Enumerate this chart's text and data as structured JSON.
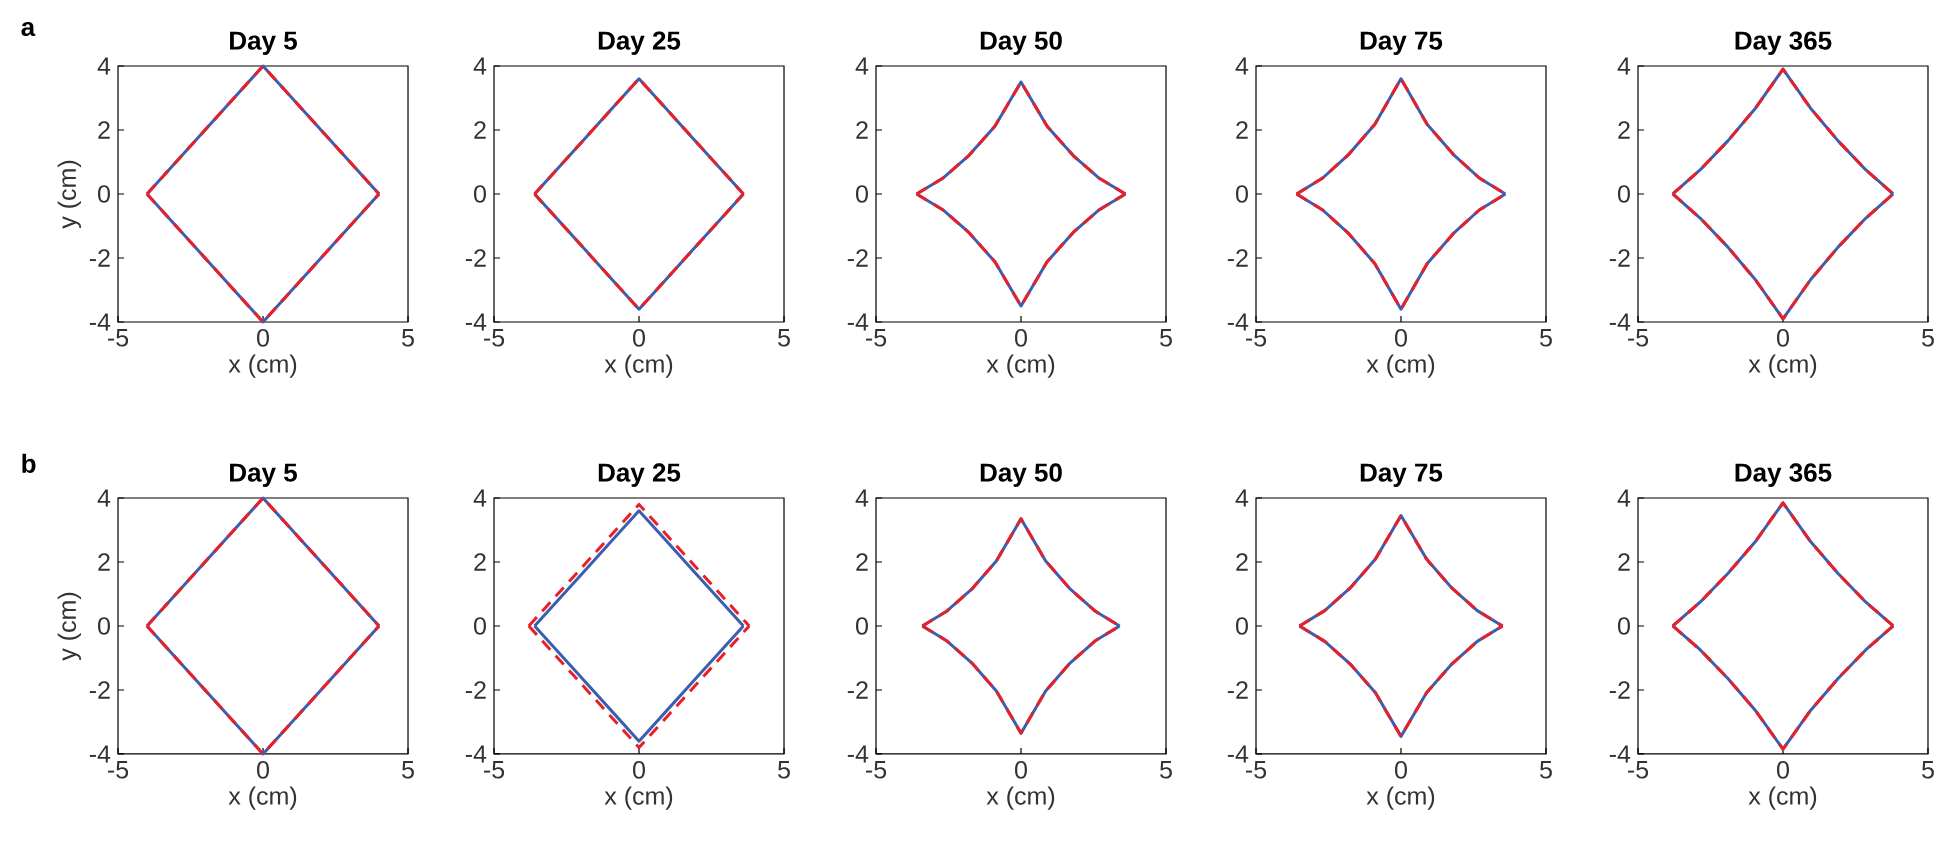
{
  "chart_data": [
    {
      "type": "line",
      "title": "Day 5",
      "xlabel": "x (cm)",
      "ylabel": "y (cm)",
      "annotations": [
        "a"
      ],
      "xlim": [
        -5,
        5
      ],
      "ylim": [
        -4,
        4
      ],
      "xticks": [
        -5,
        0,
        5
      ],
      "yticks": [
        -4,
        -2,
        0,
        2,
        4
      ],
      "series": [
        {
          "color": "#3a5fb0",
          "line_style": "solid",
          "x": [
            -4,
            -3,
            -2,
            -1,
            0,
            1,
            2,
            3,
            4
          ],
          "values": [
            0,
            1,
            2,
            3,
            4,
            3,
            2,
            1,
            0
          ]
        },
        {
          "color": "#3a5fb0",
          "line_style": "solid",
          "x": [
            -4,
            -3,
            -2,
            -1,
            0,
            1,
            2,
            3,
            4
          ],
          "values": [
            0,
            -1,
            -2,
            -3,
            -4,
            -3,
            -2,
            -1,
            0
          ]
        },
        {
          "color": "#e8202a",
          "line_style": "dashed",
          "x": [
            -4,
            -3,
            -2,
            -1,
            0,
            1,
            2,
            3,
            4
          ],
          "values": [
            0,
            1,
            2,
            3,
            4,
            3,
            2,
            1,
            0
          ]
        },
        {
          "color": "#e8202a",
          "line_style": "dashed",
          "x": [
            -4,
            -3,
            -2,
            -1,
            0,
            1,
            2,
            3,
            4
          ],
          "values": [
            0,
            -1,
            -2,
            -3,
            -4,
            -3,
            -2,
            -1,
            0
          ]
        }
      ]
    },
    {
      "type": "line",
      "title": "Day 25",
      "xlabel": "x (cm)",
      "xlim": [
        -5,
        5
      ],
      "ylim": [
        -4,
        4
      ],
      "xticks": [
        -5,
        0,
        5
      ],
      "yticks": [
        -4,
        -2,
        0,
        2,
        4
      ],
      "series": [
        {
          "color": "#3a5fb0",
          "line_style": "solid",
          "x": [
            -3.6,
            -2.7,
            -1.8,
            -0.9,
            0,
            0.9,
            1.8,
            2.7,
            3.6
          ],
          "values": [
            0,
            0.9,
            1.8,
            2.7,
            3.6,
            2.7,
            1.8,
            0.9,
            0
          ]
        },
        {
          "color": "#3a5fb0",
          "line_style": "solid",
          "x": [
            -3.6,
            -2.7,
            -1.8,
            -0.9,
            0,
            0.9,
            1.8,
            2.7,
            3.6
          ],
          "values": [
            0,
            -0.9,
            -1.8,
            -2.7,
            -3.6,
            -2.7,
            -1.8,
            -0.9,
            0
          ]
        },
        {
          "color": "#e8202a",
          "line_style": "dashed",
          "x": [
            -3.6,
            -2.7,
            -1.8,
            -0.9,
            0,
            0.9,
            1.8,
            2.7,
            3.6
          ],
          "values": [
            0,
            0.9,
            1.8,
            2.7,
            3.6,
            2.7,
            1.8,
            0.9,
            0
          ]
        },
        {
          "color": "#e8202a",
          "line_style": "dashed",
          "x": [
            -3.6,
            -2.7,
            -1.8,
            -0.9,
            0,
            0.9,
            1.8,
            2.7,
            3.6
          ],
          "values": [
            0,
            -0.9,
            -1.8,
            -2.7,
            -3.6,
            -2.7,
            -1.8,
            -0.9,
            0
          ]
        }
      ]
    },
    {
      "type": "line",
      "title": "Day 50",
      "xlabel": "x (cm)",
      "xlim": [
        -5,
        5
      ],
      "ylim": [
        -4,
        4
      ],
      "xticks": [
        -5,
        0,
        5
      ],
      "yticks": [
        -4,
        -2,
        0,
        2,
        4
      ],
      "series": [
        {
          "color": "#3a5fb0",
          "line_style": "solid",
          "x": [
            -3.6,
            -2.7,
            -1.8,
            -0.9,
            0,
            0.9,
            1.8,
            2.7,
            3.6
          ],
          "values": [
            0,
            0.49,
            1.2,
            2.12,
            3.5,
            2.12,
            1.2,
            0.49,
            0
          ]
        },
        {
          "color": "#3a5fb0",
          "line_style": "solid",
          "x": [
            -3.6,
            -2.7,
            -1.8,
            -0.9,
            0,
            0.9,
            1.8,
            2.7,
            3.6
          ],
          "values": [
            0,
            -0.49,
            -1.2,
            -2.12,
            -3.5,
            -2.12,
            -1.2,
            -0.49,
            0
          ]
        },
        {
          "color": "#e8202a",
          "line_style": "dashed",
          "x": [
            -3.6,
            -2.7,
            -1.8,
            -0.9,
            0,
            0.9,
            1.8,
            2.7,
            3.6
          ],
          "values": [
            0,
            0.49,
            1.2,
            2.12,
            3.5,
            2.12,
            1.2,
            0.49,
            0
          ]
        },
        {
          "color": "#e8202a",
          "line_style": "dashed",
          "x": [
            -3.6,
            -2.7,
            -1.8,
            -0.9,
            0,
            0.9,
            1.8,
            2.7,
            3.6
          ],
          "values": [
            0,
            -0.49,
            -1.2,
            -2.12,
            -3.5,
            -2.12,
            -1.2,
            -0.49,
            0
          ]
        }
      ]
    },
    {
      "type": "line",
      "title": "Day 75",
      "xlabel": "x (cm)",
      "xlim": [
        -5,
        5
      ],
      "ylim": [
        -4,
        4
      ],
      "xticks": [
        -5,
        0,
        5
      ],
      "yticks": [
        -4,
        -2,
        0,
        2,
        4
      ],
      "series": [
        {
          "color": "#3a5fb0",
          "line_style": "solid",
          "x": [
            -3.6,
            -2.7,
            -1.8,
            -0.9,
            0,
            0.9,
            1.8,
            2.7,
            3.6
          ],
          "values": [
            0,
            0.5,
            1.24,
            2.18,
            3.6,
            2.18,
            1.24,
            0.5,
            0
          ]
        },
        {
          "color": "#3a5fb0",
          "line_style": "solid",
          "x": [
            -3.6,
            -2.7,
            -1.8,
            -0.9,
            0,
            0.9,
            1.8,
            2.7,
            3.6
          ],
          "values": [
            0,
            -0.5,
            -1.24,
            -2.18,
            -3.6,
            -2.18,
            -1.24,
            -0.5,
            0
          ]
        },
        {
          "color": "#e8202a",
          "line_style": "dashed",
          "x": [
            -3.6,
            -2.7,
            -1.8,
            -0.9,
            0,
            0.9,
            1.8,
            2.7,
            3.6
          ],
          "values": [
            0,
            0.5,
            1.24,
            2.18,
            3.6,
            2.18,
            1.24,
            0.5,
            0
          ]
        },
        {
          "color": "#e8202a",
          "line_style": "dashed",
          "x": [
            -3.6,
            -2.7,
            -1.8,
            -0.9,
            0,
            0.9,
            1.8,
            2.7,
            3.6
          ],
          "values": [
            0,
            -0.5,
            -1.24,
            -2.18,
            -3.6,
            -2.18,
            -1.24,
            -0.5,
            0
          ]
        }
      ]
    },
    {
      "type": "line",
      "title": "Day 365",
      "xlabel": "x (cm)",
      "xlim": [
        -5,
        5
      ],
      "ylim": [
        -4,
        4
      ],
      "xticks": [
        -5,
        0,
        5
      ],
      "yticks": [
        -4,
        -2,
        0,
        2,
        4
      ],
      "series": [
        {
          "color": "#3a5fb0",
          "line_style": "solid",
          "x": [
            -3.8,
            -2.85,
            -1.9,
            -0.95,
            0,
            0.95,
            1.9,
            2.85,
            3.8
          ],
          "values": [
            0,
            0.76,
            1.66,
            2.68,
            3.9,
            2.68,
            1.66,
            0.76,
            0
          ]
        },
        {
          "color": "#3a5fb0",
          "line_style": "solid",
          "x": [
            -3.8,
            -2.85,
            -1.9,
            -0.95,
            0,
            0.95,
            1.9,
            2.85,
            3.8
          ],
          "values": [
            0,
            -0.76,
            -1.66,
            -2.68,
            -3.9,
            -2.68,
            -1.66,
            -0.76,
            0
          ]
        },
        {
          "color": "#e8202a",
          "line_style": "dashed",
          "x": [
            -3.8,
            -2.85,
            -1.9,
            -0.95,
            0,
            0.95,
            1.9,
            2.85,
            3.8
          ],
          "values": [
            0,
            0.76,
            1.66,
            2.68,
            3.9,
            2.68,
            1.66,
            0.76,
            0
          ]
        },
        {
          "color": "#e8202a",
          "line_style": "dashed",
          "x": [
            -3.8,
            -2.85,
            -1.9,
            -0.95,
            0,
            0.95,
            1.9,
            2.85,
            3.8
          ],
          "values": [
            0,
            -0.76,
            -1.66,
            -2.68,
            -3.9,
            -2.68,
            -1.66,
            -0.76,
            0
          ]
        }
      ]
    },
    {
      "type": "line",
      "title": "Day 5",
      "xlabel": "x (cm)",
      "ylabel": "y (cm)",
      "annotations": [
        "b"
      ],
      "xlim": [
        -5,
        5
      ],
      "ylim": [
        -4,
        4
      ],
      "xticks": [
        -5,
        0,
        5
      ],
      "yticks": [
        -4,
        -2,
        0,
        2,
        4
      ],
      "series": [
        {
          "color": "#3a5fb0",
          "line_style": "solid",
          "x": [
            -4,
            -3,
            -2,
            -1,
            0,
            1,
            2,
            3,
            4
          ],
          "values": [
            0,
            1,
            2,
            3,
            4,
            3,
            2,
            1,
            0
          ]
        },
        {
          "color": "#3a5fb0",
          "line_style": "solid",
          "x": [
            -4,
            -3,
            -2,
            -1,
            0,
            1,
            2,
            3,
            4
          ],
          "values": [
            0,
            -1,
            -2,
            -3,
            -4,
            -3,
            -2,
            -1,
            0
          ]
        },
        {
          "color": "#e8202a",
          "line_style": "dashed",
          "x": [
            -4,
            -3,
            -2,
            -1,
            0,
            1,
            2,
            3,
            4
          ],
          "values": [
            0,
            1,
            2,
            3,
            4,
            3,
            2,
            1,
            0
          ]
        },
        {
          "color": "#e8202a",
          "line_style": "dashed",
          "x": [
            -4,
            -3,
            -2,
            -1,
            0,
            1,
            2,
            3,
            4
          ],
          "values": [
            0,
            -1,
            -2,
            -3,
            -4,
            -3,
            -2,
            -1,
            0
          ]
        }
      ]
    },
    {
      "type": "line",
      "title": "Day 25",
      "xlabel": "x (cm)",
      "xlim": [
        -5,
        5
      ],
      "ylim": [
        -4,
        4
      ],
      "xticks": [
        -5,
        0,
        5
      ],
      "yticks": [
        -4,
        -2,
        0,
        2,
        4
      ],
      "series": [
        {
          "color": "#3a5fb0",
          "line_style": "solid",
          "x": [
            -3.6,
            -2.7,
            -1.8,
            -0.9,
            0,
            0.9,
            1.8,
            2.7,
            3.6
          ],
          "values": [
            0,
            0.9,
            1.8,
            2.7,
            3.6,
            2.7,
            1.8,
            0.9,
            0
          ]
        },
        {
          "color": "#3a5fb0",
          "line_style": "solid",
          "x": [
            -3.6,
            -2.7,
            -1.8,
            -0.9,
            0,
            0.9,
            1.8,
            2.7,
            3.6
          ],
          "values": [
            0,
            -0.9,
            -1.8,
            -2.7,
            -3.6,
            -2.7,
            -1.8,
            -0.9,
            0
          ]
        },
        {
          "color": "#e8202a",
          "line_style": "dashed",
          "x": [
            -3.8,
            -2.85,
            -1.9,
            -0.95,
            0,
            0.95,
            1.9,
            2.85,
            3.8
          ],
          "values": [
            0,
            0.95,
            1.9,
            2.85,
            3.8,
            2.85,
            1.9,
            0.95,
            0
          ]
        },
        {
          "color": "#e8202a",
          "line_style": "dashed",
          "x": [
            -3.8,
            -2.85,
            -1.9,
            -0.95,
            0,
            0.95,
            1.9,
            2.85,
            3.8
          ],
          "values": [
            0,
            -0.95,
            -1.9,
            -2.85,
            -3.8,
            -2.85,
            -1.9,
            -0.95,
            0
          ]
        }
      ]
    },
    {
      "type": "line",
      "title": "Day 50",
      "xlabel": "x (cm)",
      "xlim": [
        -5,
        5
      ],
      "ylim": [
        -4,
        4
      ],
      "xticks": [
        -5,
        0,
        5
      ],
      "yticks": [
        -4,
        -2,
        0,
        2,
        4
      ],
      "series": [
        {
          "color": "#3a5fb0",
          "line_style": "solid",
          "x": [
            -3.4,
            -2.55,
            -1.7,
            -0.85,
            0,
            0.85,
            1.7,
            2.55,
            3.4
          ],
          "values": [
            0,
            0.47,
            1.15,
            2.03,
            3.35,
            2.03,
            1.15,
            0.47,
            0
          ]
        },
        {
          "color": "#3a5fb0",
          "line_style": "solid",
          "x": [
            -3.4,
            -2.55,
            -1.7,
            -0.85,
            0,
            0.85,
            1.7,
            2.55,
            3.4
          ],
          "values": [
            0,
            -0.47,
            -1.15,
            -2.03,
            -3.35,
            -2.03,
            -1.15,
            -0.47,
            0
          ]
        },
        {
          "color": "#e8202a",
          "line_style": "dashed",
          "x": [
            -3.4,
            -2.55,
            -1.7,
            -0.85,
            0,
            0.85,
            1.7,
            2.55,
            3.4
          ],
          "values": [
            0,
            0.47,
            1.15,
            2.03,
            3.35,
            2.03,
            1.15,
            0.47,
            0
          ]
        },
        {
          "color": "#e8202a",
          "line_style": "dashed",
          "x": [
            -3.4,
            -2.55,
            -1.7,
            -0.85,
            0,
            0.85,
            1.7,
            2.55,
            3.4
          ],
          "values": [
            0,
            -0.47,
            -1.15,
            -2.03,
            -3.35,
            -2.03,
            -1.15,
            -0.47,
            0
          ]
        }
      ]
    },
    {
      "type": "line",
      "title": "Day 75",
      "xlabel": "x (cm)",
      "xlim": [
        -5,
        5
      ],
      "ylim": [
        -4,
        4
      ],
      "xticks": [
        -5,
        0,
        5
      ],
      "yticks": [
        -4,
        -2,
        0,
        2,
        4
      ],
      "series": [
        {
          "color": "#3a5fb0",
          "line_style": "solid",
          "x": [
            -3.5,
            -2.63,
            -1.75,
            -0.88,
            0,
            0.88,
            1.75,
            2.63,
            3.5
          ],
          "values": [
            0,
            0.48,
            1.19,
            2.09,
            3.45,
            2.09,
            1.19,
            0.48,
            0
          ]
        },
        {
          "color": "#3a5fb0",
          "line_style": "solid",
          "x": [
            -3.5,
            -2.63,
            -1.75,
            -0.88,
            0,
            0.88,
            1.75,
            2.63,
            3.5
          ],
          "values": [
            0,
            -0.48,
            -1.19,
            -2.09,
            -3.45,
            -2.09,
            -1.19,
            -0.48,
            0
          ]
        },
        {
          "color": "#e8202a",
          "line_style": "dashed",
          "x": [
            -3.5,
            -2.63,
            -1.75,
            -0.88,
            0,
            0.88,
            1.75,
            2.63,
            3.5
          ],
          "values": [
            0,
            0.48,
            1.19,
            2.09,
            3.45,
            2.09,
            1.19,
            0.48,
            0
          ]
        },
        {
          "color": "#e8202a",
          "line_style": "dashed",
          "x": [
            -3.5,
            -2.63,
            -1.75,
            -0.88,
            0,
            0.88,
            1.75,
            2.63,
            3.5
          ],
          "values": [
            0,
            -0.48,
            -1.19,
            -2.09,
            -3.45,
            -2.09,
            -1.19,
            -0.48,
            0
          ]
        }
      ]
    },
    {
      "type": "line",
      "title": "Day 365",
      "xlabel": "x (cm)",
      "xlim": [
        -5,
        5
      ],
      "ylim": [
        -4,
        4
      ],
      "xticks": [
        -5,
        0,
        5
      ],
      "yticks": [
        -4,
        -2,
        0,
        2,
        4
      ],
      "series": [
        {
          "color": "#3a5fb0",
          "line_style": "solid",
          "x": [
            -3.8,
            -2.85,
            -1.9,
            -0.95,
            0,
            0.95,
            1.9,
            2.85,
            3.8
          ],
          "values": [
            0,
            0.75,
            1.64,
            2.64,
            3.85,
            2.64,
            1.64,
            0.75,
            0
          ]
        },
        {
          "color": "#3a5fb0",
          "line_style": "solid",
          "x": [
            -3.8,
            -2.85,
            -1.9,
            -0.95,
            0,
            0.95,
            1.9,
            2.85,
            3.8
          ],
          "values": [
            0,
            -0.75,
            -1.64,
            -2.64,
            -3.85,
            -2.64,
            -1.64,
            -0.75,
            0
          ]
        },
        {
          "color": "#e8202a",
          "line_style": "dashed",
          "x": [
            -3.8,
            -2.85,
            -1.9,
            -0.95,
            0,
            0.95,
            1.9,
            2.85,
            3.8
          ],
          "values": [
            0,
            0.75,
            1.64,
            2.64,
            3.85,
            2.64,
            1.64,
            0.75,
            0
          ]
        },
        {
          "color": "#e8202a",
          "line_style": "dashed",
          "x": [
            -3.8,
            -2.85,
            -1.9,
            -0.95,
            0,
            0.95,
            1.9,
            2.85,
            3.8
          ],
          "values": [
            0,
            -0.75,
            -1.64,
            -2.64,
            -3.85,
            -2.64,
            -1.64,
            -0.75,
            0
          ]
        }
      ]
    }
  ]
}
